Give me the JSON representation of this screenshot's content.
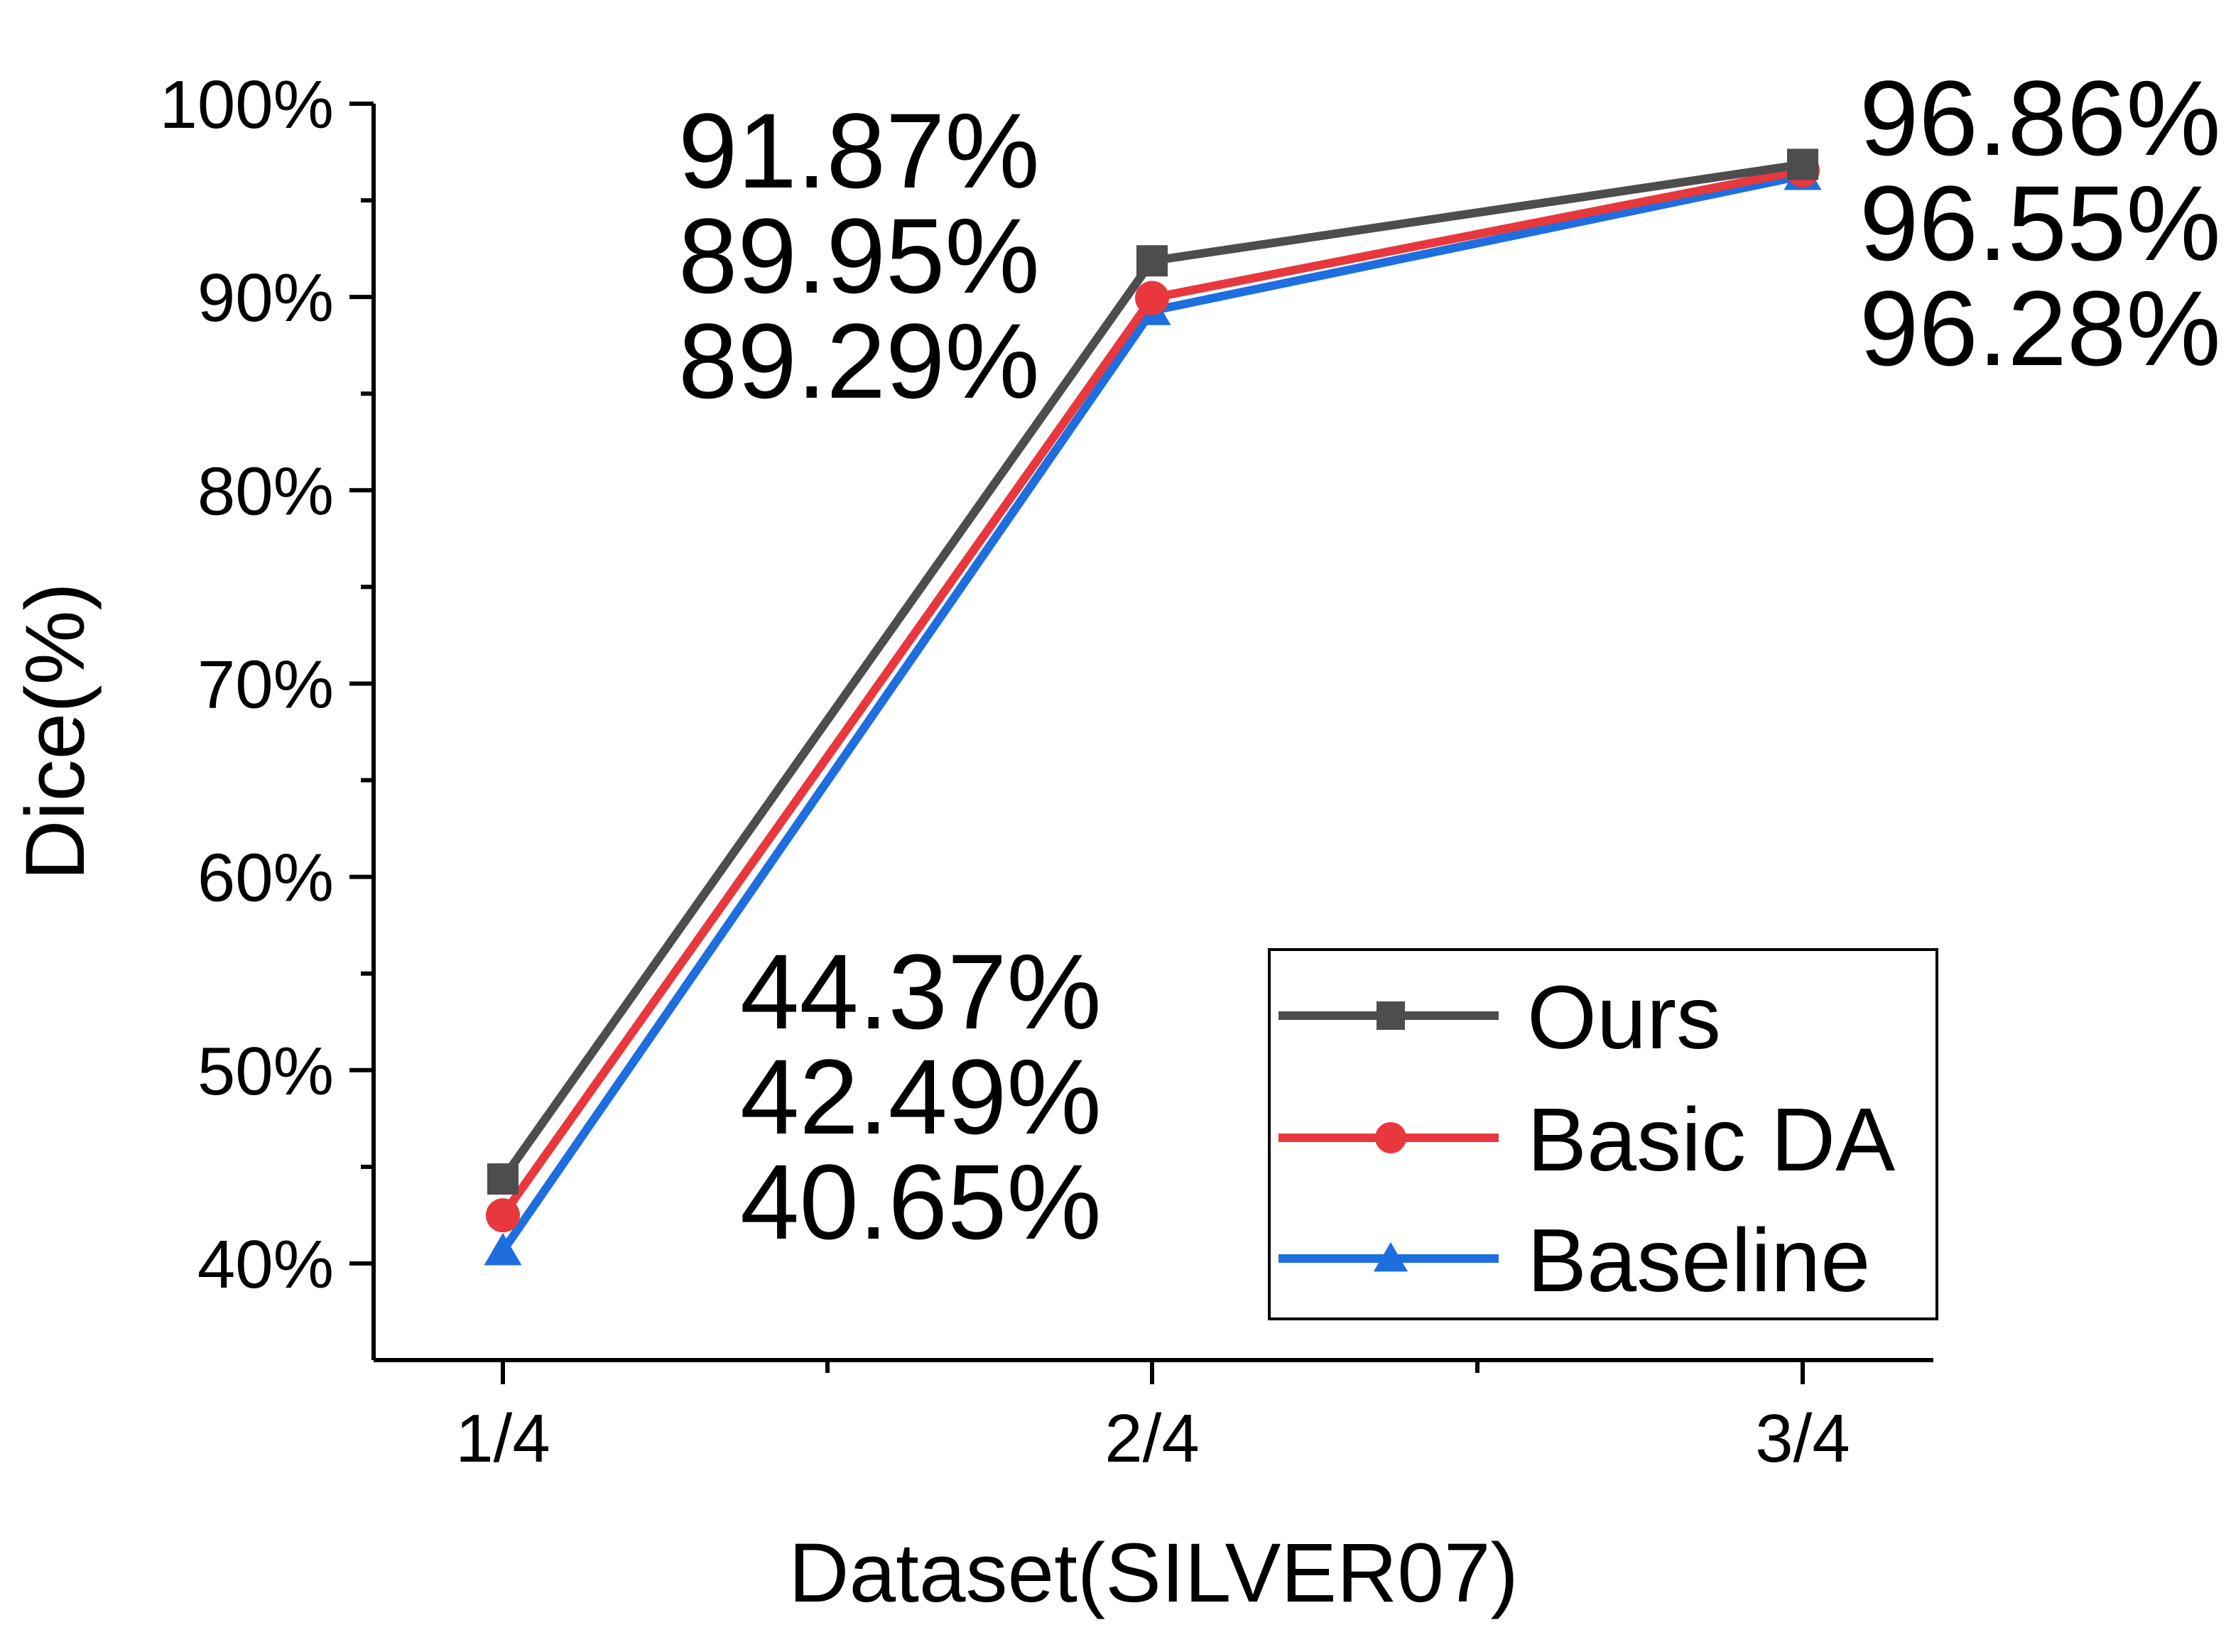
{
  "chart_data": {
    "type": "line",
    "title": "",
    "xlabel": "Dataset(SILVER07)",
    "ylabel": "Dice(%)",
    "categories": [
      "1/4",
      "2/4",
      "3/4"
    ],
    "ylim": [
      35,
      100
    ],
    "yticks": [
      40,
      50,
      60,
      70,
      80,
      90,
      100
    ],
    "ytick_labels": [
      "40%",
      "50%",
      "60%",
      "70%",
      "80%",
      "90%",
      "100%"
    ],
    "series": [
      {
        "name": "Ours",
        "values": [
          44.37,
          91.87,
          96.86
        ],
        "color": "#4d4d4d",
        "marker": "square"
      },
      {
        "name": "Basic DA",
        "values": [
          42.49,
          89.95,
          96.55
        ],
        "color": "#e8383d",
        "marker": "circle"
      },
      {
        "name": "Baseline",
        "values": [
          40.65,
          89.29,
          96.28
        ],
        "color": "#1f6ee0",
        "marker": "triangle"
      }
    ],
    "annotations": [
      {
        "category": "1/4",
        "lines": [
          "44.37%",
          "42.49%",
          "40.65%"
        ]
      },
      {
        "category": "2/4",
        "lines": [
          "91.87%",
          "89.95%",
          "89.29%"
        ]
      },
      {
        "category": "3/4",
        "lines": [
          "96.86%",
          "96.55%",
          "96.28%"
        ]
      }
    ],
    "legend_position": "bottom-right",
    "grid": false
  }
}
